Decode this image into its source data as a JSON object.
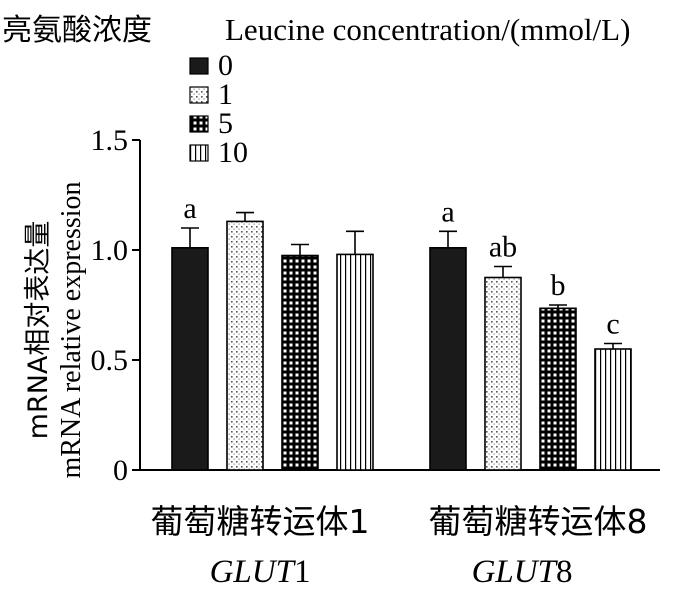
{
  "chart_data": {
    "type": "bar",
    "legend_title_cn": "亮氨酸浓度",
    "legend_title_en": "Leucine concentration/(mmol/L)",
    "legend_placement": "top-left",
    "ylabel_cn": "mRNA相对表达量",
    "ylabel_en": "mRNA relative expression",
    "ylim": [
      0,
      1.5
    ],
    "yticks": [
      "0",
      "0.5",
      "1.0",
      "1.5"
    ],
    "groups": [
      {
        "label_cn": "葡萄糖转运体1",
        "label_gene": "GLUT",
        "label_num": "1"
      },
      {
        "label_cn": "葡萄糖转运体8",
        "label_gene": "GLUT",
        "label_num": "8"
      }
    ],
    "series": [
      {
        "name": "0",
        "pattern": "solid",
        "values": [
          1.01,
          1.01
        ],
        "errors": [
          0.09,
          0.075
        ],
        "letters": [
          "a",
          "a"
        ]
      },
      {
        "name": "1",
        "pattern": "dots",
        "values": [
          1.13,
          0.875
        ],
        "errors": [
          0.04,
          0.05
        ],
        "letters": [
          "",
          "ab"
        ]
      },
      {
        "name": "5",
        "pattern": "grid",
        "values": [
          0.975,
          0.735
        ],
        "errors": [
          0.05,
          0.015
        ],
        "letters": [
          "",
          "b"
        ]
      },
      {
        "name": "10",
        "pattern": "vertical",
        "values": [
          0.98,
          0.55
        ],
        "errors": [
          0.105,
          0.025
        ],
        "letters": [
          "",
          "c"
        ]
      }
    ]
  }
}
